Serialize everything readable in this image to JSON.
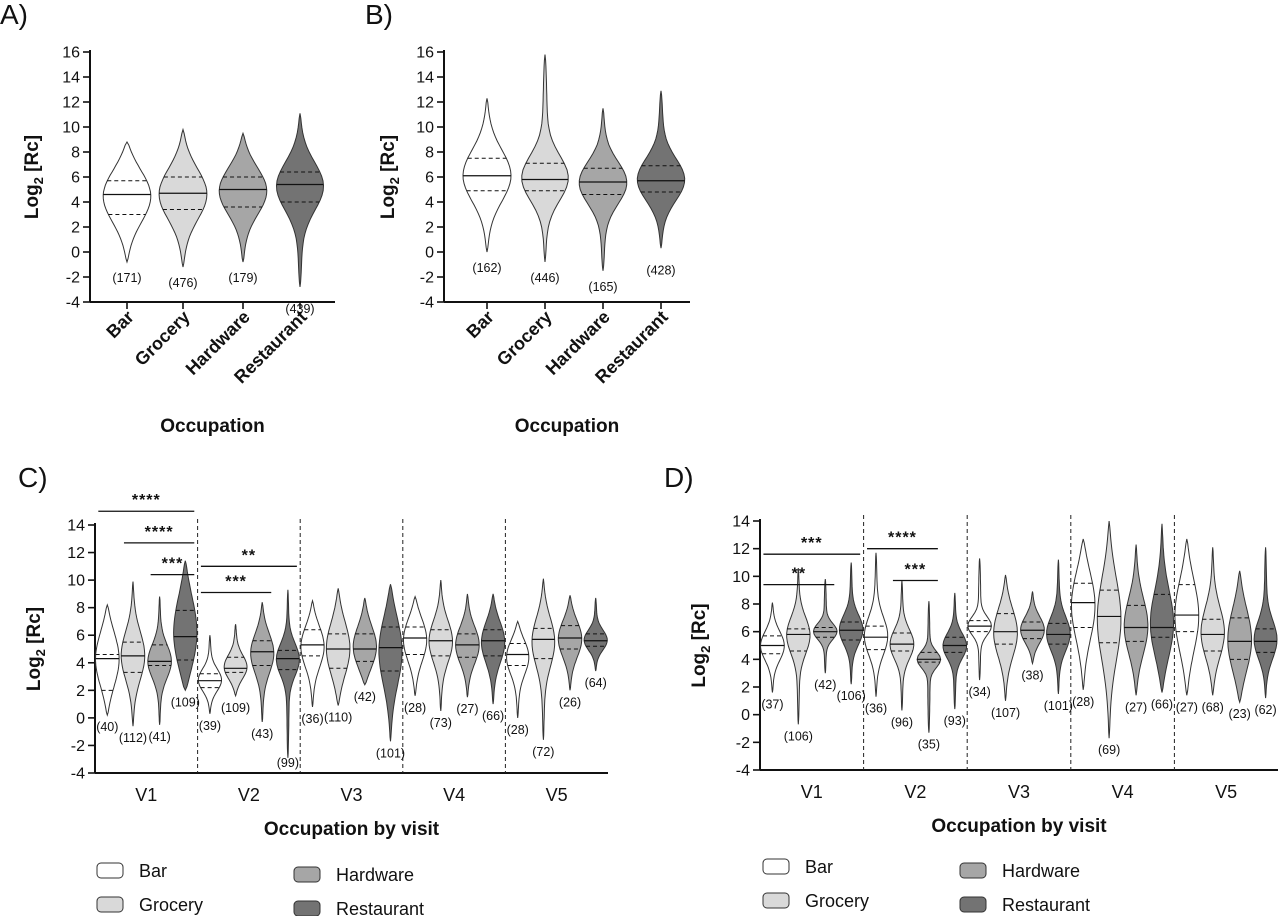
{
  "colors": {
    "Bar": "#ffffff",
    "Grocery": "#d9d9d9",
    "Hardware": "#a6a6a6",
    "Restaurant": "#737373",
    "outline": "#333333"
  },
  "chart_data": [
    {
      "panel": "A)",
      "type": "violin",
      "xlabel": "Occupation",
      "ylabel": "Log2 [Rc]",
      "ylim": [
        -4,
        16
      ],
      "yticks": [
        -4,
        -2,
        0,
        2,
        4,
        6,
        8,
        10,
        12,
        14,
        16
      ],
      "categories": [
        "Bar",
        "Grocery",
        "Hardware",
        "Restaurant"
      ],
      "groups": [
        {
          "name": "Bar",
          "n_label": "(171)",
          "min": -0.8,
          "max": 8.8,
          "q1": 3.0,
          "median": 4.6,
          "q3": 5.7
        },
        {
          "name": "Grocery",
          "n_label": "(476)",
          "min": -1.2,
          "max": 9.8,
          "q1": 3.4,
          "median": 4.7,
          "q3": 6.0
        },
        {
          "name": "Hardware",
          "n_label": "(179)",
          "min": -0.8,
          "max": 9.5,
          "q1": 3.6,
          "median": 5.0,
          "q3": 6.0
        },
        {
          "name": "Restaurant",
          "n_label": "(439)",
          "min": -2.8,
          "max": 11.1,
          "q1": 4.0,
          "median": 5.4,
          "q3": 6.4
        }
      ]
    },
    {
      "panel": "B)",
      "type": "violin",
      "xlabel": "Occupation",
      "ylabel": "Log2 [Rc]",
      "ylim": [
        -4,
        16
      ],
      "yticks": [
        -4,
        -2,
        0,
        2,
        4,
        6,
        8,
        10,
        12,
        14,
        16
      ],
      "categories": [
        "Bar",
        "Grocery",
        "Hardware",
        "Restaurant"
      ],
      "groups": [
        {
          "name": "Bar",
          "n_label": "(162)",
          "min": 0.0,
          "max": 12.3,
          "q1": 4.9,
          "median": 6.1,
          "q3": 7.5
        },
        {
          "name": "Grocery",
          "n_label": "(446)",
          "min": -0.8,
          "max": 15.8,
          "q1": 4.9,
          "median": 5.8,
          "q3": 7.1
        },
        {
          "name": "Hardware",
          "n_label": "(165)",
          "min": -1.5,
          "max": 11.5,
          "q1": 4.6,
          "median": 5.6,
          "q3": 6.7
        },
        {
          "name": "Restaurant",
          "n_label": "(428)",
          "min": 0.3,
          "max": 12.9,
          "q1": 4.8,
          "median": 5.7,
          "q3": 6.9
        }
      ]
    },
    {
      "panel": "C)",
      "type": "violin",
      "xlabel": "Occupation by visit",
      "ylabel": "Log2 [Rc]",
      "ylim": [
        -4,
        14
      ],
      "yticks": [
        -4,
        -2,
        0,
        2,
        4,
        6,
        8,
        10,
        12,
        14
      ],
      "visits": [
        "V1",
        "V2",
        "V3",
        "V4",
        "V5"
      ],
      "legend": [
        "Bar",
        "Grocery",
        "Hardware",
        "Restaurant"
      ],
      "groups": [
        {
          "visit": "V1",
          "name": "Bar",
          "n_label": "(40)",
          "min": 0.2,
          "max": 8.2,
          "q1": 2.0,
          "median": 4.3,
          "q3": 4.6
        },
        {
          "visit": "V1",
          "name": "Grocery",
          "n_label": "(112)",
          "min": -0.6,
          "max": 9.9,
          "q1": 3.3,
          "median": 4.5,
          "q3": 5.5
        },
        {
          "visit": "V1",
          "name": "Hardware",
          "n_label": "(41)",
          "min": -0.5,
          "max": 8.8,
          "q1": 3.8,
          "median": 4.1,
          "q3": 5.3
        },
        {
          "visit": "V1",
          "name": "Restaurant",
          "n_label": "(109)",
          "min": 2.0,
          "max": 11.4,
          "q1": 4.2,
          "median": 5.9,
          "q3": 7.8
        },
        {
          "visit": "V2",
          "name": "Bar",
          "n_label": "(39)",
          "min": 0.3,
          "max": 6.0,
          "q1": 2.2,
          "median": 2.7,
          "q3": 3.2
        },
        {
          "visit": "V2",
          "name": "Grocery",
          "n_label": "(109)",
          "min": 1.6,
          "max": 6.8,
          "q1": 3.3,
          "median": 3.6,
          "q3": 4.4
        },
        {
          "visit": "V2",
          "name": "Hardware",
          "n_label": "(43)",
          "min": -0.3,
          "max": 8.4,
          "q1": 3.8,
          "median": 4.8,
          "q3": 5.6
        },
        {
          "visit": "V2",
          "name": "Restaurant",
          "n_label": "(99)",
          "min": -2.9,
          "max": 9.3,
          "q1": 3.5,
          "median": 4.3,
          "q3": 4.9
        },
        {
          "visit": "V3",
          "name": "Bar",
          "n_label": "(36)",
          "min": 0.8,
          "max": 8.5,
          "q1": 4.5,
          "median": 5.3,
          "q3": 6.4
        },
        {
          "visit": "V3",
          "name": "Grocery",
          "n_label": "(110)",
          "min": 0.9,
          "max": 9.4,
          "q1": 3.6,
          "median": 5.0,
          "q3": 6.1
        },
        {
          "visit": "V3",
          "name": "Hardware",
          "n_label": "(42)",
          "min": 2.4,
          "max": 8.7,
          "q1": 4.1,
          "median": 5.0,
          "q3": 6.1
        },
        {
          "visit": "V3",
          "name": "Restaurant",
          "n_label": "(101)",
          "min": -1.7,
          "max": 9.7,
          "q1": 3.4,
          "median": 5.1,
          "q3": 6.6
        },
        {
          "visit": "V4",
          "name": "Bar",
          "n_label": "(28)",
          "min": 1.6,
          "max": 8.8,
          "q1": 4.6,
          "median": 5.8,
          "q3": 6.6
        },
        {
          "visit": "V4",
          "name": "Grocery",
          "n_label": "(73)",
          "min": 0.5,
          "max": 10.0,
          "q1": 4.5,
          "median": 5.6,
          "q3": 6.4
        },
        {
          "visit": "V4",
          "name": "Hardware",
          "n_label": "(27)",
          "min": 1.5,
          "max": 9.0,
          "q1": 4.4,
          "median": 5.3,
          "q3": 6.1
        },
        {
          "visit": "V4",
          "name": "Restaurant",
          "n_label": "(66)",
          "min": 1.0,
          "max": 9.0,
          "q1": 4.5,
          "median": 5.6,
          "q3": 6.4
        },
        {
          "visit": "V5",
          "name": "Bar",
          "n_label": "(28)",
          "min": 0.0,
          "max": 7.0,
          "q1": 3.8,
          "median": 4.6,
          "q3": 5.4
        },
        {
          "visit": "V5",
          "name": "Grocery",
          "n_label": "(72)",
          "min": -1.6,
          "max": 10.1,
          "q1": 4.3,
          "median": 5.7,
          "q3": 6.5
        },
        {
          "visit": "V5",
          "name": "Hardware",
          "n_label": "(26)",
          "min": 2.0,
          "max": 8.9,
          "q1": 5.0,
          "median": 5.8,
          "q3": 6.7
        },
        {
          "visit": "V5",
          "name": "Restaurant",
          "n_label": "(64)",
          "min": 3.4,
          "max": 8.7,
          "q1": 5.2,
          "median": 5.6,
          "q3": 6.1
        }
      ],
      "significance": [
        {
          "visit": "V1",
          "from": "Bar",
          "to": "Restaurant",
          "label": "****"
        },
        {
          "visit": "V1",
          "from": "Grocery",
          "to": "Restaurant",
          "label": "****"
        },
        {
          "visit": "V1",
          "from": "Hardware",
          "to": "Restaurant",
          "label": "***"
        },
        {
          "visit": "V2",
          "from": "Bar",
          "to": "Restaurant",
          "label": "**"
        },
        {
          "visit": "V2",
          "from": "Bar",
          "to": "Hardware",
          "label": "***"
        }
      ]
    },
    {
      "panel": "D)",
      "type": "violin",
      "xlabel": "Occupation by visit",
      "ylabel": "Log2 [Rc]",
      "ylim": [
        -4,
        14
      ],
      "yticks": [
        -4,
        -2,
        0,
        2,
        4,
        6,
        8,
        10,
        12,
        14
      ],
      "visits": [
        "V1",
        "V2",
        "V3",
        "V4",
        "V5"
      ],
      "legend": [
        "Bar",
        "Grocery",
        "Hardware",
        "Restaurant"
      ],
      "groups": [
        {
          "visit": "V1",
          "name": "Bar",
          "n_label": "(37)",
          "min": 1.6,
          "max": 8.1,
          "q1": 4.4,
          "median": 5.0,
          "q3": 5.7
        },
        {
          "visit": "V1",
          "name": "Grocery",
          "n_label": "(106)",
          "min": -0.7,
          "max": 10.6,
          "q1": 4.6,
          "median": 5.8,
          "q3": 6.2
        },
        {
          "visit": "V1",
          "name": "Hardware",
          "n_label": "(42)",
          "min": 3.0,
          "max": 9.8,
          "q1": 5.6,
          "median": 6.0,
          "q3": 6.3
        },
        {
          "visit": "V1",
          "name": "Restaurant",
          "n_label": "(106)",
          "min": 2.2,
          "max": 11.0,
          "q1": 5.4,
          "median": 6.1,
          "q3": 6.7
        },
        {
          "visit": "V2",
          "name": "Bar",
          "n_label": "(36)",
          "min": 1.3,
          "max": 11.7,
          "q1": 4.7,
          "median": 5.6,
          "q3": 6.4
        },
        {
          "visit": "V2",
          "name": "Grocery",
          "n_label": "(96)",
          "min": 0.3,
          "max": 9.7,
          "q1": 4.6,
          "median": 5.1,
          "q3": 5.9
        },
        {
          "visit": "V2",
          "name": "Hardware",
          "n_label": "(35)",
          "min": -1.3,
          "max": 8.2,
          "q1": 3.8,
          "median": 4.0,
          "q3": 4.5
        },
        {
          "visit": "V2",
          "name": "Restaurant",
          "n_label": "(93)",
          "min": 0.4,
          "max": 8.8,
          "q1": 4.5,
          "median": 5.0,
          "q3": 5.6
        },
        {
          "visit": "V3",
          "name": "Bar",
          "n_label": "(34)",
          "min": 2.5,
          "max": 11.3,
          "q1": 6.0,
          "median": 6.4,
          "q3": 6.8
        },
        {
          "visit": "V3",
          "name": "Grocery",
          "n_label": "(107)",
          "min": 1.0,
          "max": 10.1,
          "q1": 5.1,
          "median": 6.0,
          "q3": 7.3
        },
        {
          "visit": "V3",
          "name": "Hardware",
          "n_label": "(38)",
          "min": 3.7,
          "max": 8.9,
          "q1": 5.5,
          "median": 6.1,
          "q3": 6.7
        },
        {
          "visit": "V3",
          "name": "Restaurant",
          "n_label": "(101)",
          "min": 1.5,
          "max": 11.2,
          "q1": 5.1,
          "median": 5.8,
          "q3": 6.6
        },
        {
          "visit": "V4",
          "name": "Bar",
          "n_label": "(28)",
          "min": 1.8,
          "max": 12.7,
          "q1": 6.3,
          "median": 8.1,
          "q3": 9.5
        },
        {
          "visit": "V4",
          "name": "Grocery",
          "n_label": "(69)",
          "min": -1.7,
          "max": 14.0,
          "q1": 5.2,
          "median": 7.1,
          "q3": 9.0
        },
        {
          "visit": "V4",
          "name": "Hardware",
          "n_label": "(27)",
          "min": 1.4,
          "max": 12.3,
          "q1": 5.3,
          "median": 6.3,
          "q3": 7.9
        },
        {
          "visit": "V4",
          "name": "Restaurant",
          "n_label": "(66)",
          "min": 1.6,
          "max": 13.8,
          "q1": 5.6,
          "median": 6.3,
          "q3": 8.7
        },
        {
          "visit": "V5",
          "name": "Bar",
          "n_label": "(27)",
          "min": 1.4,
          "max": 12.7,
          "q1": 6.0,
          "median": 7.2,
          "q3": 9.4
        },
        {
          "visit": "V5",
          "name": "Grocery",
          "n_label": "(68)",
          "min": 1.4,
          "max": 12.1,
          "q1": 4.6,
          "median": 5.8,
          "q3": 6.9
        },
        {
          "visit": "V5",
          "name": "Hardware",
          "n_label": "(23)",
          "min": 0.9,
          "max": 10.4,
          "q1": 4.0,
          "median": 5.3,
          "q3": 7.0
        },
        {
          "visit": "V5",
          "name": "Restaurant",
          "n_label": "(62)",
          "min": 1.2,
          "max": 12.1,
          "q1": 4.5,
          "median": 5.3,
          "q3": 6.2
        }
      ],
      "significance": [
        {
          "visit": "V1",
          "from": "Bar",
          "to": "Restaurant",
          "label": "***"
        },
        {
          "visit": "V1",
          "from": "Bar",
          "to": "Hardware",
          "label": "**"
        },
        {
          "visit": "V2",
          "from": "Bar",
          "to": "Hardware",
          "label": "****"
        },
        {
          "visit": "V2",
          "from": "Grocery",
          "to": "Hardware",
          "label": "***"
        }
      ]
    }
  ]
}
